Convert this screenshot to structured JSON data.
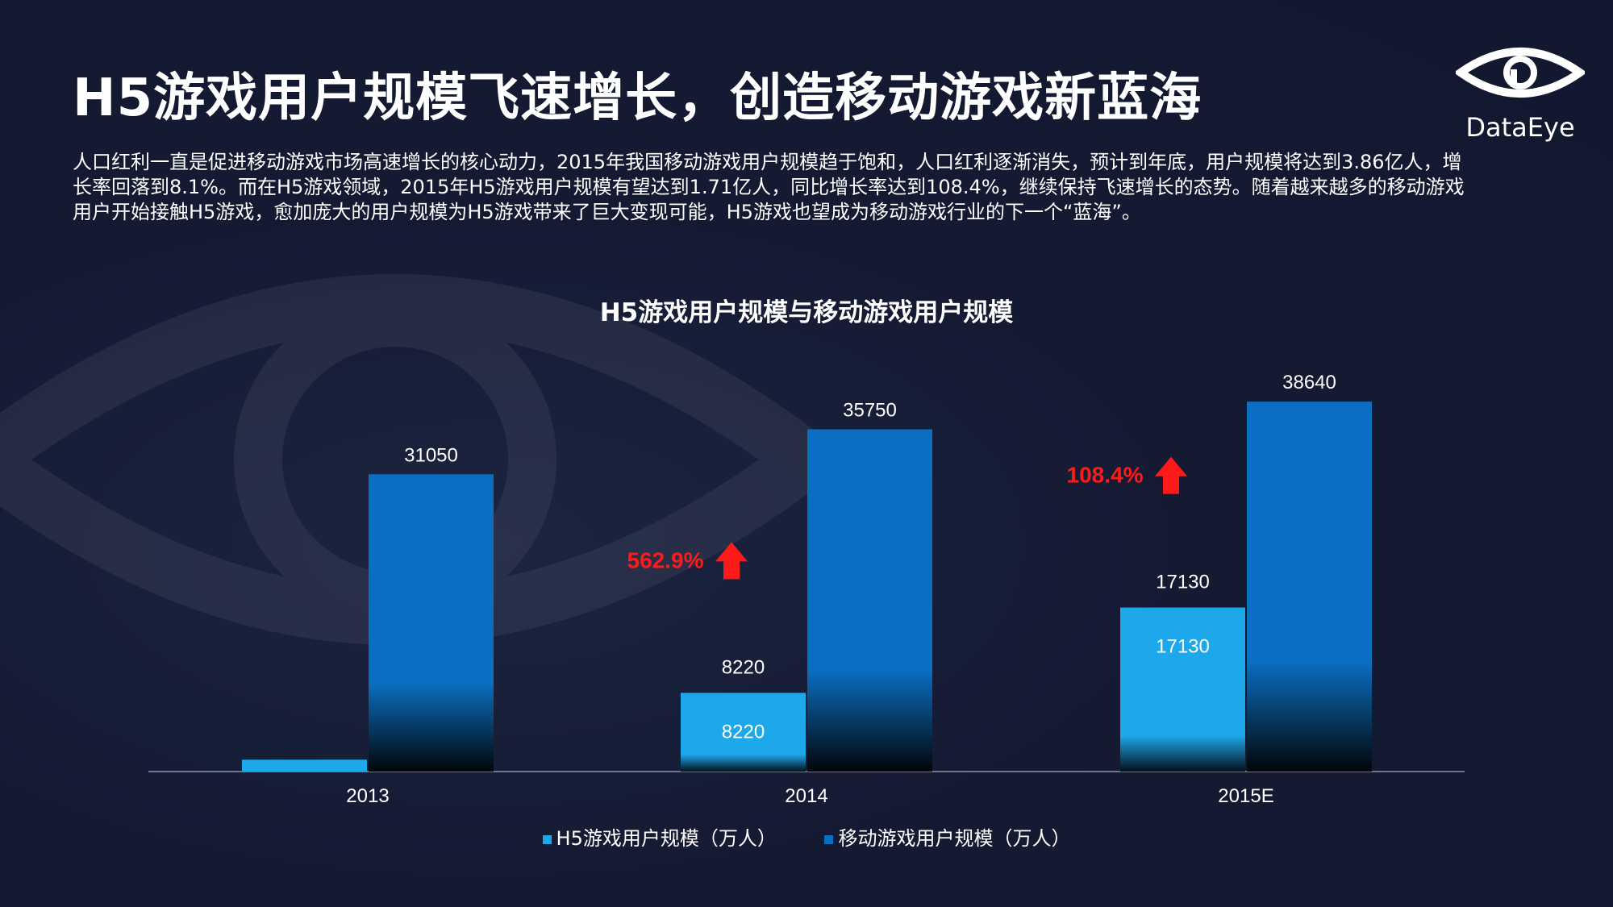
{
  "title": "H5游戏用户规模飞速增长，创造移动游戏新蓝海",
  "logo": {
    "text": "DataEye"
  },
  "description": "人口红利一直是促进移动游戏市场高速增长的核心动力，2015年我国移动游戏用户规模趋于饱和，人口红利逐渐消失，预计到年底，用户规模将达到3.86亿人，增长率回落到8.1%。而在H5游戏领域，2015年H5游戏用户规模有望达到1.71亿人，同比增长率达到108.4%，继续保持飞速增长的态势。随着越来越多的移动游戏用户开始接触H5游戏，愈加庞大的用户规模为H5游戏带来了巨大变现可能，H5游戏也望成为移动游戏行业的下一个“蓝海”。",
  "colors": {
    "h5": "#1ea8ec",
    "mobile": "#0a6fc2",
    "growth": "#ff1a1a"
  },
  "chart_data": {
    "type": "bar",
    "title": "H5游戏用户规模与移动游戏用户规模",
    "categories": [
      "2013",
      "2014",
      "2015E"
    ],
    "series": [
      {
        "name": "H5游戏用户规模（万人）",
        "values": [
          1240,
          8220,
          17130
        ],
        "labels": [
          "",
          "8220",
          "17130"
        ],
        "inner_labels": [
          "",
          "8220",
          "17130"
        ]
      },
      {
        "name": "移动游戏用户规模（万人）",
        "values": [
          31050,
          35750,
          38640
        ],
        "labels": [
          "31050",
          "35750",
          "38640"
        ]
      }
    ],
    "growth_annotations": [
      {
        "category": "2014",
        "text": "562.9%"
      },
      {
        "category": "2015E",
        "text": "108.4%"
      }
    ],
    "ylim": [
      0,
      40000
    ],
    "grid": false,
    "legend_position": "bottom"
  }
}
